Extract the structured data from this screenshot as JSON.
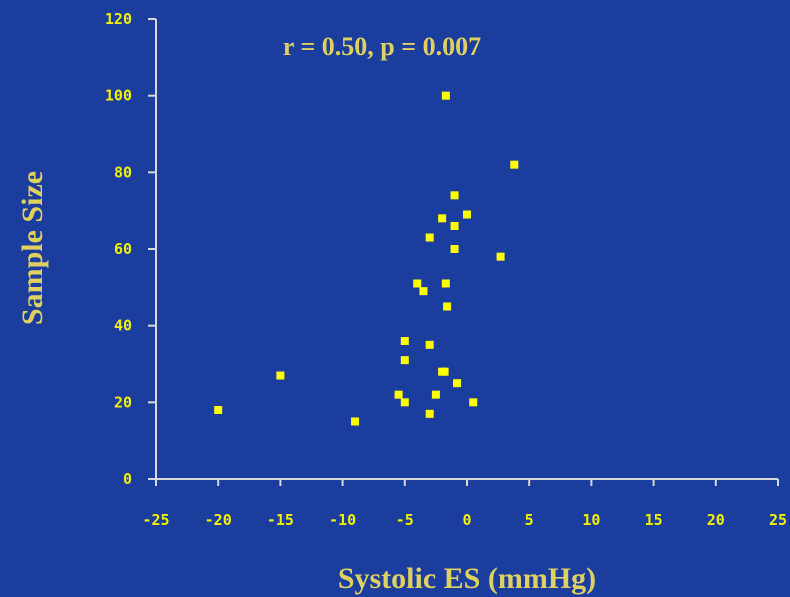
{
  "colors": {
    "background": "#1b3d9e",
    "axis": "#d8d8d8",
    "tick_text": "#f2f200",
    "title_text": "#e0d060",
    "marker": "#ffff00"
  },
  "chart_data": {
    "type": "scatter",
    "annotation": "r = 0.50, p = 0.007",
    "xlabel": "Systolic ES (mmHg)",
    "ylabel": "Sample Size",
    "xlim": [
      -25,
      25
    ],
    "ylim": [
      0,
      120
    ],
    "xticks": [
      "-25",
      "-20",
      "-15",
      "-10",
      "-5",
      "0",
      "5",
      "10",
      "15",
      "20",
      "25"
    ],
    "yticks": [
      "0",
      "20",
      "40",
      "60",
      "80",
      "100",
      "120"
    ],
    "points": [
      {
        "x": -20,
        "y": 18
      },
      {
        "x": -15,
        "y": 27
      },
      {
        "x": -9,
        "y": 15
      },
      {
        "x": -5.5,
        "y": 22
      },
      {
        "x": -5,
        "y": 20
      },
      {
        "x": -5,
        "y": 31
      },
      {
        "x": -5,
        "y": 36
      },
      {
        "x": -4,
        "y": 51
      },
      {
        "x": -3.5,
        "y": 49
      },
      {
        "x": -3,
        "y": 63
      },
      {
        "x": -3,
        "y": 35
      },
      {
        "x": -3,
        "y": 17
      },
      {
        "x": -2.5,
        "y": 22
      },
      {
        "x": -2,
        "y": 28
      },
      {
        "x": -1.8,
        "y": 28
      },
      {
        "x": -2,
        "y": 68
      },
      {
        "x": -1.7,
        "y": 51
      },
      {
        "x": -1.6,
        "y": 45
      },
      {
        "x": -1.7,
        "y": 100
      },
      {
        "x": -1,
        "y": 74
      },
      {
        "x": -1,
        "y": 66
      },
      {
        "x": -1,
        "y": 60
      },
      {
        "x": -0.8,
        "y": 25
      },
      {
        "x": 0,
        "y": 69
      },
      {
        "x": 0.5,
        "y": 20
      },
      {
        "x": 2.7,
        "y": 58
      },
      {
        "x": 3.8,
        "y": 82
      }
    ]
  }
}
